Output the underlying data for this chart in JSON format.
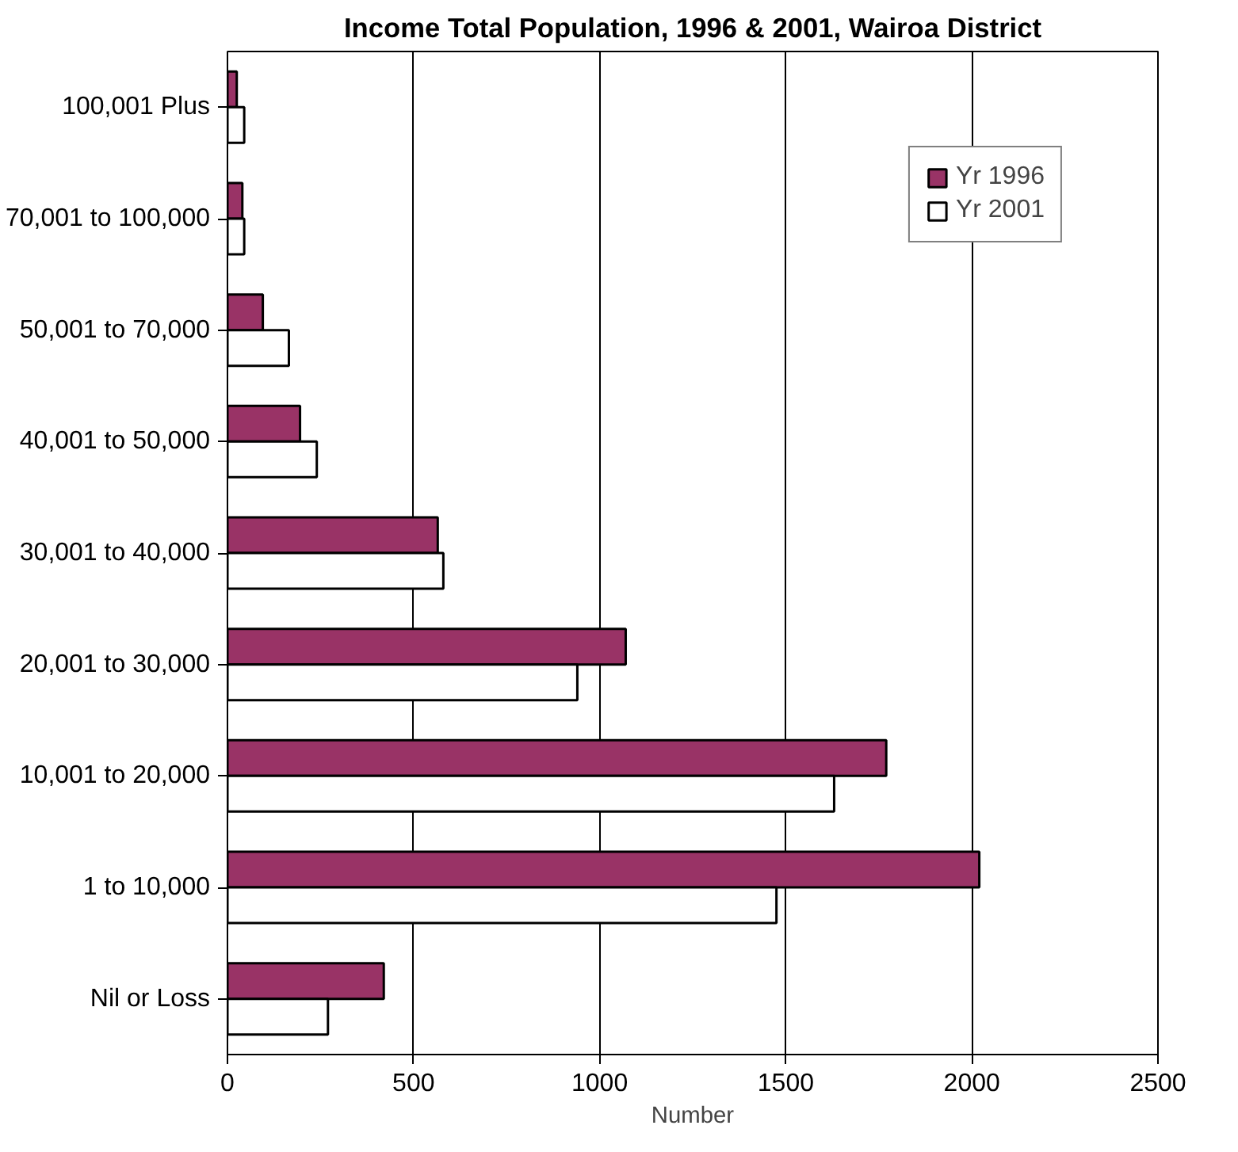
{
  "chart_data": {
    "type": "bar",
    "orientation": "horizontal",
    "title": "Income Total Population, 1996 & 2001, Wairoa District",
    "xlabel": "Number",
    "categories": [
      "100,001 Plus",
      "70,001 to 100,000",
      "50,001 to 70,000",
      "40,001 to 50,000",
      "30,001 to 40,000",
      "20,001 to 30,000",
      "10,001 to 20,000",
      "1 to 10,000",
      "Nil or Loss"
    ],
    "series": [
      {
        "name": "Yr 1996",
        "color": "#993366",
        "values": [
          25,
          40,
          95,
          195,
          565,
          1070,
          1770,
          2020,
          420
        ]
      },
      {
        "name": "Yr 2001",
        "color": "#ffffff",
        "values": [
          45,
          45,
          165,
          240,
          580,
          940,
          1630,
          1475,
          270
        ]
      }
    ],
    "xlim": [
      0,
      2500
    ],
    "xticks": [
      0,
      500,
      1000,
      1500,
      2000,
      2500
    ],
    "grid": "x",
    "legend": "top right"
  }
}
